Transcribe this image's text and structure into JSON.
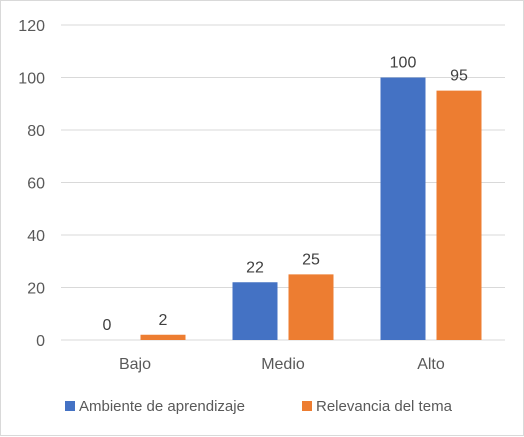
{
  "chart_data": {
    "type": "bar",
    "categories": [
      "Bajo",
      "Medio",
      "Alto"
    ],
    "series": [
      {
        "name": "Ambiente de aprendizaje",
        "values": [
          0,
          22,
          100
        ],
        "color": "#4472C4"
      },
      {
        "name": "Relevancia del tema",
        "values": [
          2,
          25,
          95
        ],
        "color": "#ED7D31"
      }
    ],
    "yticks": [
      0,
      20,
      40,
      60,
      80,
      100,
      120
    ],
    "ylim": [
      0,
      120
    ],
    "grid": true,
    "legend": "bottom",
    "data_labels": true
  }
}
